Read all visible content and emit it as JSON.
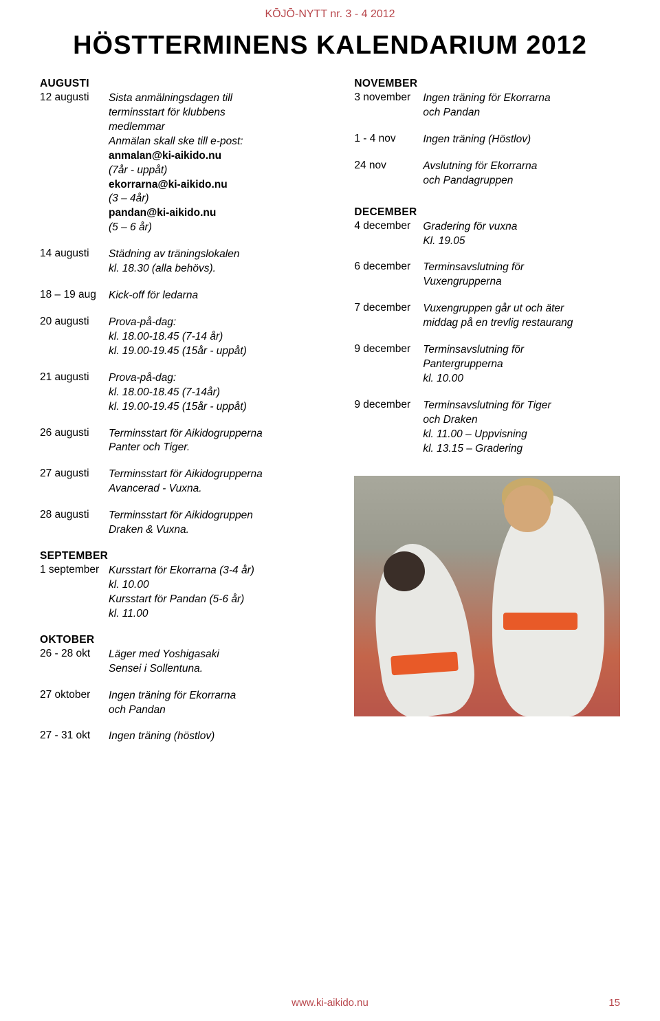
{
  "header": {
    "issue": "KŌJŌ-NYTT nr. 3 - 4 2012",
    "title": "HÖSTTERMINENS KALENDARIUM 2012"
  },
  "left": {
    "months": [
      {
        "heading": "AUGUSTI",
        "entries": [
          {
            "date": "12 augusti",
            "desc": "Sista anmälningsdagen till\nterminsstart för klubbens\nmedlemmar\nAnmälan skall ske till e-post:",
            "bold": "anmalan@ki-aikido.nu",
            "desc2": "(7år - uppåt)",
            "bold2": "ekorrarna@ki-aikido.nu",
            "desc3": "(3 – 4år)",
            "bold3": "pandan@ki-aikido.nu",
            "desc4": "(5 – 6 år)"
          },
          {
            "date": "14 augusti",
            "desc": "Städning av träningslokalen\nkl. 18.30 (alla behövs)."
          },
          {
            "date": "18 – 19 aug",
            "desc": "Kick-off för ledarna"
          },
          {
            "date": "20 augusti",
            "desc": "Prova-på-dag:\nkl. 18.00-18.45 (7-14 år)\nkl. 19.00-19.45 (15år - uppåt)"
          },
          {
            "date": "21 augusti",
            "desc": "Prova-på-dag:\nkl. 18.00-18.45 (7-14år)\nkl. 19.00-19.45 (15år - uppåt)"
          },
          {
            "date": "26 augusti",
            "desc": "Terminsstart för Aikidogrupperna\nPanter och Tiger."
          },
          {
            "date": "27 augusti",
            "desc": "Terminsstart för Aikidogrupperna\nAvancerad - Vuxna."
          },
          {
            "date": "28 augusti",
            "desc": "Terminsstart för Aikidogruppen\nDraken & Vuxna."
          }
        ]
      },
      {
        "heading": "SEPTEMBER",
        "entries": [
          {
            "date": "1 september",
            "desc": "Kursstart för Ekorrarna (3-4 år)\nkl. 10.00\nKursstart för Pandan (5-6 år)\nkl. 11.00"
          }
        ]
      },
      {
        "heading": "OKTOBER",
        "entries": [
          {
            "date": "26 - 28 okt",
            "desc": "Läger med Yoshigasaki\nSensei i Sollentuna."
          },
          {
            "date": "27 oktober",
            "desc": "Ingen träning för Ekorrarna\noch Pandan"
          },
          {
            "date": "27 - 31 okt",
            "desc": "Ingen träning (höstlov)"
          }
        ]
      }
    ]
  },
  "right": {
    "months": [
      {
        "heading": "NOVEMBER",
        "entries": [
          {
            "date": "3 november",
            "desc": "Ingen träning för Ekorrarna\noch Pandan"
          },
          {
            "date": "1 - 4 nov",
            "desc": "Ingen träning (Höstlov)"
          },
          {
            "date": "24 nov",
            "desc": "Avslutning för Ekorrarna\noch Pandagruppen"
          }
        ]
      },
      {
        "heading": "DECEMBER",
        "entries": [
          {
            "date": "4 december",
            "desc": "Gradering för vuxna\nKl. 19.05"
          },
          {
            "date": "6 december",
            "desc": "Terminsavslutning för\nVuxengrupperna"
          },
          {
            "date": "7 december",
            "desc": "Vuxengruppen går ut och äter\nmiddag på en trevlig restaurang"
          },
          {
            "date": "9 december",
            "desc": "Terminsavslutning för\nPantergrupperna\nkl. 10.00"
          },
          {
            "date": "9 december",
            "desc": "Terminsavslutning för Tiger\noch Draken\nkl. 11.00 – Uppvisning\nkl. 13.15 – Gradering"
          }
        ]
      }
    ]
  },
  "footer": {
    "url": "www.ki-aikido.nu",
    "page": "15"
  }
}
